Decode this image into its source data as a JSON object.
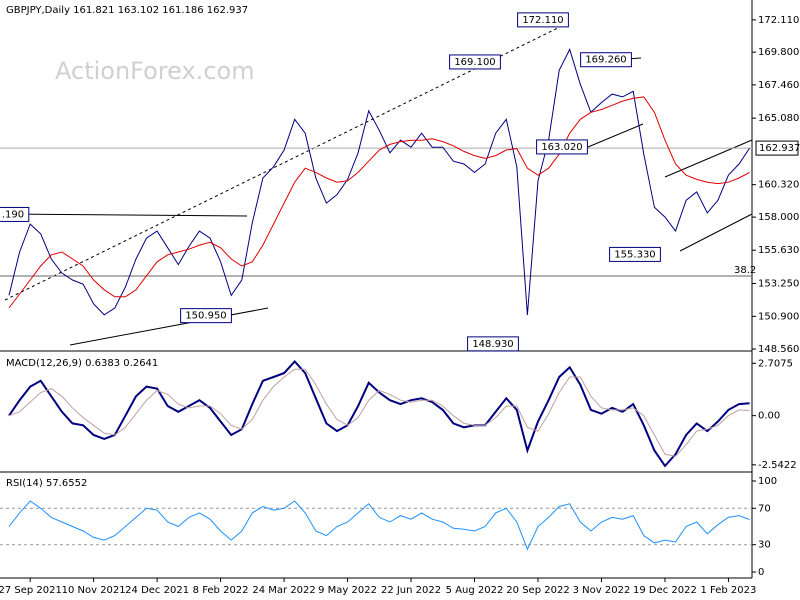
{
  "chart_data": [
    {
      "type": "line",
      "title": "GBPJPY,Daily 161.821 163.102 161.186 162.937",
      "watermark": "ActionForex.com",
      "categories": [
        null,
        null,
        "27 Sep 2021",
        null,
        null,
        null,
        null,
        null,
        "10 Nov 2021",
        null,
        null,
        null,
        null,
        null,
        "24 Dec 2021",
        null,
        null,
        null,
        null,
        null,
        "8 Feb 2022",
        null,
        null,
        null,
        null,
        null,
        "24 Mar 2022",
        null,
        null,
        null,
        null,
        null,
        "9 May 2022",
        null,
        null,
        null,
        null,
        null,
        "22 Jun 2022",
        null,
        null,
        null,
        null,
        null,
        "5 Aug 2022",
        null,
        null,
        null,
        null,
        null,
        "20 Sep 2022",
        null,
        null,
        null,
        null,
        null,
        "3 Nov 2022",
        null,
        null,
        null,
        null,
        null,
        "19 Dec 2022",
        null,
        null,
        null,
        null,
        null,
        "1 Feb 2023",
        null,
        null
      ],
      "series": [
        {
          "color": "#000080",
          "values": [
            152.4,
            155.5,
            157.5,
            156.8,
            155,
            154,
            153.5,
            153.2,
            151.8,
            151,
            151.5,
            153,
            155,
            156.5,
            157,
            155.8,
            154.6,
            155.9,
            157,
            156.5,
            154.8,
            152.4,
            153.5,
            157.6,
            160.8,
            161.6,
            162.8,
            165,
            164,
            160.8,
            159,
            159.6,
            160.7,
            162.6,
            165.6,
            164.2,
            162.6,
            163.5,
            163,
            164,
            163,
            163,
            162,
            161.8,
            161.2,
            161.8,
            164,
            165,
            161.6,
            151,
            160.6,
            163.5,
            168.5,
            170,
            167.5,
            165.5,
            166.2,
            166.8,
            166.6,
            167,
            162.5,
            158.7,
            158,
            157,
            159.2,
            159.8,
            158.3,
            159.2,
            161,
            161.8,
            162.937
          ]
        },
        {
          "color": "#e00000",
          "values": [
            151.5,
            152.5,
            153.5,
            154.5,
            155.3,
            155.5,
            155,
            154.5,
            153.5,
            152.8,
            152.3,
            152.3,
            152.8,
            153.8,
            154.8,
            155.3,
            155.5,
            155.7,
            156,
            156.2,
            155.8,
            155,
            154.5,
            154.8,
            156,
            157.5,
            159,
            160.5,
            161.5,
            161.2,
            160.8,
            160.5,
            160.6,
            161.2,
            162,
            162.8,
            163.2,
            163.4,
            163.5,
            163.5,
            163.6,
            163.4,
            163.1,
            162.7,
            162.4,
            162.2,
            162.4,
            162.8,
            162.9,
            161.5,
            161,
            161.5,
            162.5,
            164,
            165,
            165.5,
            165.7,
            166,
            166.3,
            166.5,
            166.6,
            165.5,
            163.5,
            161.8,
            161,
            160.7,
            160.5,
            160.4,
            160.5,
            160.8,
            161.2
          ]
        }
      ],
      "ylim": [
        148.42,
        172.96
      ],
      "yticks": [
        {
          "value": 172.11,
          "label": "172.110"
        },
        {
          "value": 169.8,
          "label": "169.800"
        },
        {
          "value": 167.46,
          "label": "167.460"
        },
        {
          "value": 165.08,
          "label": "165.080"
        },
        {
          "value": 160.32,
          "label": "160.320"
        },
        {
          "value": 158,
          "label": "158.000"
        },
        {
          "value": 155.63,
          "label": "155.630"
        },
        {
          "value": 153.25,
          "label": "153.250"
        },
        {
          "value": 150.9,
          "label": "150.900"
        },
        {
          "value": 148.56,
          "label": "148.560"
        }
      ],
      "last_price": {
        "value": 162.937,
        "label": "162.937"
      },
      "annotations": [
        {
          "value": 172.11,
          "label": "172.110"
        },
        {
          "value": 169.1,
          "label": "169.100"
        },
        {
          "value": 169.26,
          "label": "169.260"
        },
        {
          "value": 163.02,
          "label": "163.020"
        },
        {
          "value": 155.33,
          "label": "155.330"
        },
        {
          "value": 150.95,
          "label": "150.950"
        },
        {
          "value": 148.93,
          "label": "148.930"
        },
        {
          "value": 158.19,
          "label": ".190"
        }
      ],
      "fib_label": "38.2"
    },
    {
      "type": "line",
      "title": "MACD(12,26,9) 0.6383 0.2641",
      "series": [
        {
          "color": "#000080",
          "values": [
            0,
            0.8,
            1.5,
            1.8,
            1.0,
            0.2,
            -0.4,
            -0.5,
            -1.0,
            -1.2,
            -1.0,
            0,
            1.0,
            1.5,
            1.4,
            0.5,
            0.2,
            0.5,
            0.8,
            0.4,
            -0.3,
            -1.0,
            -0.7,
            0.6,
            1.8,
            2.0,
            2.2,
            2.8,
            2.2,
            0.9,
            -0.4,
            -0.8,
            -0.5,
            0.5,
            1.7,
            1.2,
            0.8,
            0.6,
            0.8,
            0.9,
            0.7,
            0.3,
            -0.4,
            -0.6,
            -0.5,
            -0.5,
            0.2,
            0.9,
            0.3,
            -1.8,
            -0.3,
            0.8,
            2.0,
            2.5,
            1.6,
            0.3,
            0.1,
            0.4,
            0.2,
            0.6,
            -0.5,
            -1.8,
            -2.6,
            -2.0,
            -1.0,
            -0.4,
            -0.8,
            -0.3,
            0.3,
            0.6,
            0.6383
          ]
        },
        {
          "color": "#c0a0a0",
          "values": [
            0,
            0.2,
            0.7,
            1.2,
            1.4,
            1.0,
            0.4,
            -0.1,
            -0.5,
            -0.9,
            -1.0,
            -0.6,
            0.1,
            0.8,
            1.3,
            1.1,
            0.6,
            0.4,
            0.5,
            0.5,
            0.1,
            -0.5,
            -0.7,
            -0.2,
            0.8,
            1.5,
            2.0,
            2.4,
            2.4,
            1.6,
            0.6,
            -0.2,
            -0.5,
            -0.1,
            0.8,
            1.3,
            1.1,
            0.8,
            0.7,
            0.8,
            0.8,
            0.5,
            0,
            -0.4,
            -0.5,
            -0.5,
            -0.1,
            0.5,
            0.5,
            -0.6,
            -0.8,
            0.1,
            1.2,
            2.0,
            2.0,
            1.0,
            0.4,
            0.3,
            0.3,
            0.4,
            0,
            -1.0,
            -2.0,
            -2.1,
            -1.5,
            -0.8,
            -0.7,
            -0.5,
            0,
            0.3,
            0.2641
          ]
        }
      ],
      "ylim": [
        -2.81,
        3.24
      ],
      "yticks": [
        2.7075,
        {
          "value": 0,
          "label": "0.00"
        },
        -2.5422
      ]
    },
    {
      "type": "line",
      "title": "RSI(14) 57.6552",
      "series": [
        {
          "color": "#1e90ff",
          "values": [
            50,
            65,
            78,
            70,
            60,
            55,
            50,
            45,
            38,
            35,
            40,
            50,
            60,
            70,
            68,
            55,
            50,
            60,
            65,
            58,
            45,
            35,
            45,
            65,
            72,
            68,
            70,
            78,
            65,
            45,
            40,
            50,
            55,
            65,
            75,
            60,
            55,
            62,
            58,
            65,
            58,
            55,
            48,
            47,
            45,
            50,
            65,
            70,
            55,
            25,
            50,
            60,
            72,
            75,
            55,
            45,
            55,
            60,
            58,
            62,
            40,
            32,
            35,
            33,
            50,
            55,
            42,
            52,
            60,
            62,
            57.6552
          ]
        }
      ],
      "ylim": [
        -6.6,
        107.7
      ],
      "yticks": [
        100,
        70,
        30,
        0
      ],
      "dashed_levels": [
        70,
        30
      ]
    }
  ]
}
